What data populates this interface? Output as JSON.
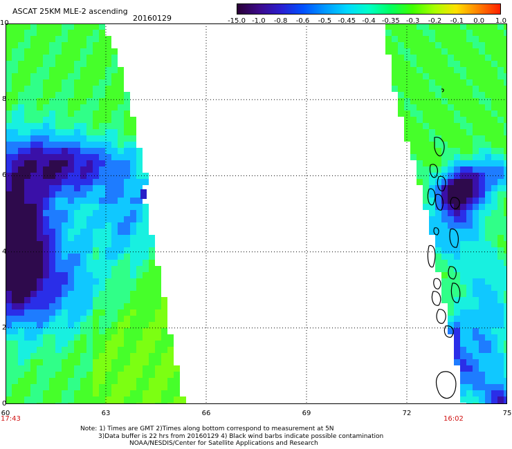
{
  "header": {
    "title": "ASCAT 25KM MLE-2 ascending",
    "date": "20160129"
  },
  "colorbar": {
    "labels": [
      "-15.0",
      "-1.0",
      "-0.8",
      "-0.6",
      "-0.5",
      "-0.45",
      "-0.4",
      "-0.35",
      "-0.3",
      "-0.2",
      "-0.1",
      "0.0",
      "1.0"
    ],
    "colors": [
      "#2a0036",
      "#3c0a8a",
      "#2a1ed0",
      "#0050ff",
      "#0098ff",
      "#00d8ff",
      "#00ffc8",
      "#00ff60",
      "#40ff00",
      "#a8ff00",
      "#ffe000",
      "#ff8000",
      "#ff2000"
    ]
  },
  "map": {
    "lon_range": [
      60,
      75
    ],
    "lat_range": [
      0,
      10
    ],
    "x_ticks": [
      "60",
      "63",
      "66",
      "69",
      "72",
      "75"
    ],
    "y_ticks": [
      "0",
      "2",
      "4",
      "6",
      "8",
      "10"
    ],
    "pass_times": {
      "left": "17:43",
      "right": "16:02"
    }
  },
  "notes": [
    "Note: 1) Times are GMT 2)Times along bottom correspond to measurement at 5N",
    "3)Data buffer is 22 hrs from 20160129 4) Black wind barbs indicate possible contamination",
    "NOAA/NESDIS/Center for Satellite Applications and Research"
  ]
}
